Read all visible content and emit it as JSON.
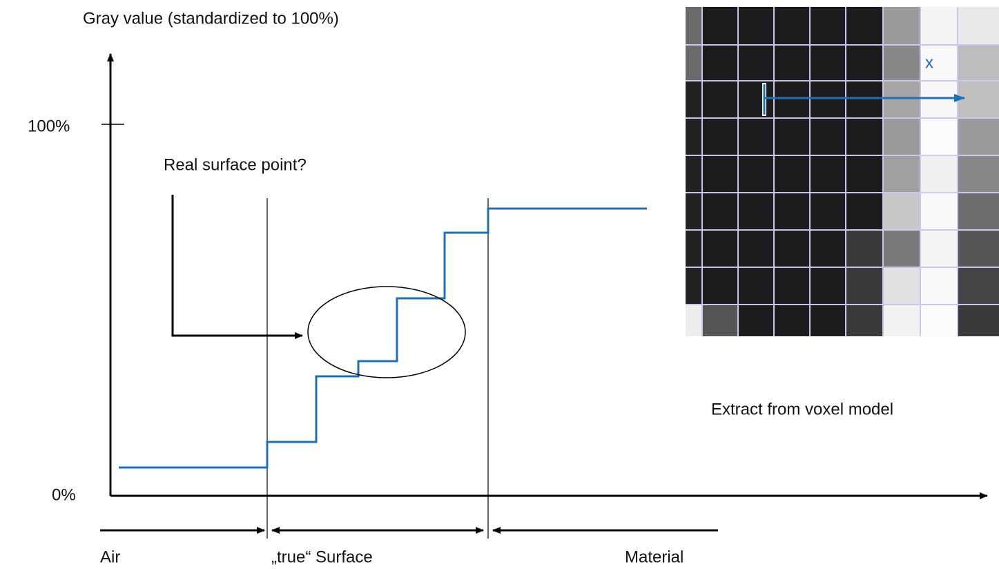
{
  "y_axis": {
    "label": "Gray value (standardized to 100%)",
    "ticks": [
      "100%",
      "0%"
    ]
  },
  "annotation": "Real surface point?",
  "regions": [
    "Air",
    "„true“ Surface",
    "Material"
  ],
  "voxel_image": {
    "axis_label": "x",
    "caption": "Extract from voxel model"
  }
}
